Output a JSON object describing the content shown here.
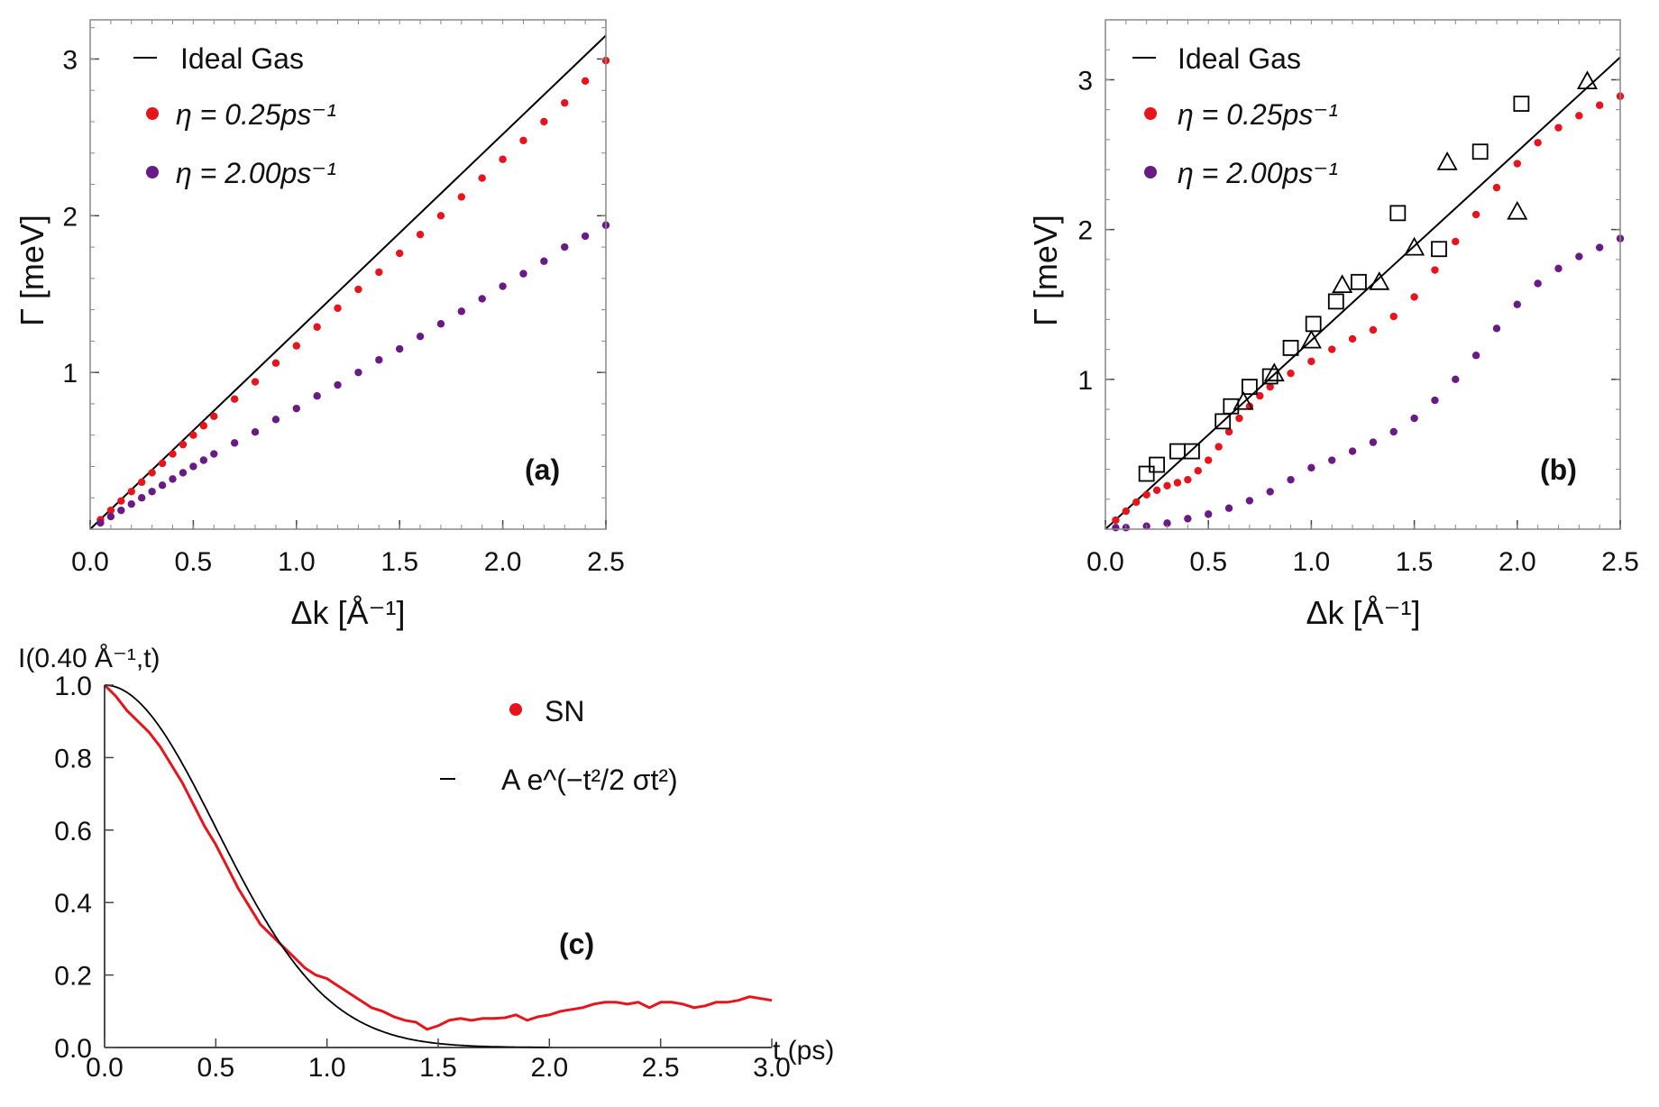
{
  "chart_data": [
    {
      "panel": "a",
      "type": "scatter",
      "panel_label": "(a)",
      "xlabel": "Δk [Å⁻¹]",
      "ylabel": "Γ [meV]",
      "xlim": [
        0,
        2.5
      ],
      "ylim": [
        0,
        3.25
      ],
      "xticks": [
        "0.0",
        "0.5",
        "1.0",
        "1.5",
        "2.0",
        "2.5"
      ],
      "yticks": [
        "1",
        "2",
        "3"
      ],
      "legend": {
        "placement": "top-left",
        "entries": [
          "Ideal Gas",
          "η = 0.25ps⁻¹",
          "η = 2.00ps⁻¹"
        ]
      },
      "series": [
        {
          "name": "Ideal Gas",
          "style": "line",
          "color": "#000000",
          "slope": 1.26
        },
        {
          "name": "η = 0.25ps⁻¹",
          "style": "points",
          "color": "#e8141b",
          "points": [
            [
              0.05,
              0.06
            ],
            [
              0.1,
              0.12
            ],
            [
              0.15,
              0.18
            ],
            [
              0.2,
              0.24
            ],
            [
              0.25,
              0.3
            ],
            [
              0.3,
              0.36
            ],
            [
              0.35,
              0.42
            ],
            [
              0.4,
              0.48
            ],
            [
              0.45,
              0.54
            ],
            [
              0.5,
              0.6
            ],
            [
              0.55,
              0.66
            ],
            [
              0.6,
              0.72
            ],
            [
              0.7,
              0.83
            ],
            [
              0.8,
              0.94
            ],
            [
              0.9,
              1.06
            ],
            [
              1.0,
              1.17
            ],
            [
              1.1,
              1.29
            ],
            [
              1.2,
              1.41
            ],
            [
              1.3,
              1.53
            ],
            [
              1.4,
              1.64
            ],
            [
              1.5,
              1.76
            ],
            [
              1.6,
              1.88
            ],
            [
              1.7,
              2.0
            ],
            [
              1.8,
              2.12
            ],
            [
              1.9,
              2.24
            ],
            [
              2.0,
              2.36
            ],
            [
              2.1,
              2.48
            ],
            [
              2.2,
              2.6
            ],
            [
              2.3,
              2.72
            ],
            [
              2.4,
              2.86
            ],
            [
              2.5,
              2.99
            ]
          ]
        },
        {
          "name": "η = 2.00ps⁻¹",
          "style": "points",
          "color": "#6a1a85",
          "points": [
            [
              0.05,
              0.04
            ],
            [
              0.1,
              0.08
            ],
            [
              0.15,
              0.12
            ],
            [
              0.2,
              0.16
            ],
            [
              0.25,
              0.2
            ],
            [
              0.3,
              0.24
            ],
            [
              0.35,
              0.28
            ],
            [
              0.4,
              0.32
            ],
            [
              0.45,
              0.36
            ],
            [
              0.5,
              0.4
            ],
            [
              0.55,
              0.44
            ],
            [
              0.6,
              0.48
            ],
            [
              0.7,
              0.55
            ],
            [
              0.8,
              0.62
            ],
            [
              0.9,
              0.7
            ],
            [
              1.0,
              0.77
            ],
            [
              1.1,
              0.85
            ],
            [
              1.2,
              0.92
            ],
            [
              1.3,
              1.0
            ],
            [
              1.4,
              1.08
            ],
            [
              1.5,
              1.15
            ],
            [
              1.6,
              1.23
            ],
            [
              1.7,
              1.31
            ],
            [
              1.8,
              1.39
            ],
            [
              1.9,
              1.47
            ],
            [
              2.0,
              1.55
            ],
            [
              2.1,
              1.63
            ],
            [
              2.2,
              1.71
            ],
            [
              2.3,
              1.8
            ],
            [
              2.4,
              1.87
            ],
            [
              2.5,
              1.94
            ]
          ]
        }
      ]
    },
    {
      "panel": "b",
      "type": "scatter",
      "panel_label": "(b)",
      "xlabel": "Δk [Å⁻¹]",
      "ylabel": "Γ [meV]",
      "xlim": [
        0,
        2.5
      ],
      "ylim": [
        0,
        3.4
      ],
      "xticks": [
        "0.0",
        "0.5",
        "1.0",
        "1.5",
        "2.0",
        "2.5"
      ],
      "yticks": [
        "1",
        "2",
        "3"
      ],
      "legend": {
        "placement": "top-left",
        "entries": [
          "Ideal Gas",
          "η = 0.25ps⁻¹",
          "η = 2.00ps⁻¹"
        ]
      },
      "series": [
        {
          "name": "Ideal Gas",
          "style": "line",
          "color": "#000000",
          "slope": 1.26
        },
        {
          "name": "η = 0.25ps⁻¹",
          "style": "points",
          "color": "#e8141b",
          "points": [
            [
              0.05,
              0.06
            ],
            [
              0.1,
              0.12
            ],
            [
              0.15,
              0.18
            ],
            [
              0.2,
              0.23
            ],
            [
              0.25,
              0.26
            ],
            [
              0.3,
              0.29
            ],
            [
              0.35,
              0.31
            ],
            [
              0.4,
              0.33
            ],
            [
              0.45,
              0.39
            ],
            [
              0.5,
              0.46
            ],
            [
              0.55,
              0.55
            ],
            [
              0.6,
              0.65
            ],
            [
              0.65,
              0.74
            ],
            [
              0.7,
              0.82
            ],
            [
              0.75,
              0.89
            ],
            [
              0.8,
              0.95
            ],
            [
              0.9,
              1.04
            ],
            [
              1.0,
              1.12
            ],
            [
              1.1,
              1.2
            ],
            [
              1.2,
              1.27
            ],
            [
              1.3,
              1.33
            ],
            [
              1.4,
              1.42
            ],
            [
              1.5,
              1.55
            ],
            [
              1.6,
              1.73
            ],
            [
              1.7,
              1.92
            ],
            [
              1.8,
              2.1
            ],
            [
              1.9,
              2.28
            ],
            [
              2.0,
              2.44
            ],
            [
              2.1,
              2.58
            ],
            [
              2.2,
              2.68
            ],
            [
              2.3,
              2.76
            ],
            [
              2.4,
              2.83
            ],
            [
              2.5,
              2.89
            ]
          ]
        },
        {
          "name": "η = 2.00ps⁻¹",
          "style": "points",
          "color": "#6a1a85",
          "points": [
            [
              0.05,
              0.01
            ],
            [
              0.1,
              0.01
            ],
            [
              0.2,
              0.02
            ],
            [
              0.3,
              0.04
            ],
            [
              0.4,
              0.07
            ],
            [
              0.5,
              0.1
            ],
            [
              0.6,
              0.14
            ],
            [
              0.7,
              0.19
            ],
            [
              0.8,
              0.25
            ],
            [
              0.9,
              0.33
            ],
            [
              1.0,
              0.41
            ],
            [
              1.1,
              0.46
            ],
            [
              1.2,
              0.52
            ],
            [
              1.3,
              0.58
            ],
            [
              1.4,
              0.65
            ],
            [
              1.5,
              0.74
            ],
            [
              1.6,
              0.86
            ],
            [
              1.7,
              1.0
            ],
            [
              1.8,
              1.16
            ],
            [
              1.9,
              1.34
            ],
            [
              2.0,
              1.5
            ],
            [
              2.1,
              1.64
            ],
            [
              2.2,
              1.74
            ],
            [
              2.3,
              1.82
            ],
            [
              2.4,
              1.88
            ],
            [
              2.5,
              1.94
            ]
          ]
        },
        {
          "name": "exp squares",
          "style": "squares",
          "color": "#000000",
          "points": [
            [
              0.2,
              0.37
            ],
            [
              0.25,
              0.43
            ],
            [
              0.35,
              0.52
            ],
            [
              0.42,
              0.52
            ],
            [
              0.57,
              0.72
            ],
            [
              0.61,
              0.82
            ],
            [
              0.7,
              0.95
            ],
            [
              0.8,
              1.02
            ],
            [
              0.9,
              1.21
            ],
            [
              1.01,
              1.37
            ],
            [
              1.12,
              1.52
            ],
            [
              1.23,
              1.65
            ],
            [
              1.42,
              2.11
            ],
            [
              1.62,
              1.87
            ],
            [
              1.82,
              2.52
            ],
            [
              2.02,
              2.84
            ]
          ]
        },
        {
          "name": "exp triangles",
          "style": "triangles",
          "color": "#000000",
          "points": [
            [
              0.67,
              0.85
            ],
            [
              0.82,
              1.04
            ],
            [
              1.0,
              1.26
            ],
            [
              1.15,
              1.63
            ],
            [
              1.33,
              1.65
            ],
            [
              1.5,
              1.88
            ],
            [
              1.66,
              2.45
            ],
            [
              2.0,
              2.12
            ],
            [
              2.34,
              2.99
            ]
          ]
        }
      ]
    },
    {
      "panel": "c",
      "type": "line",
      "panel_label": "(c)",
      "xlabel": "t (ps)",
      "ylabel": "I(0.40 Å⁻¹,t)",
      "xlim": [
        0,
        3.0
      ],
      "ylim": [
        0,
        1.0
      ],
      "xticks": [
        "0.0",
        "0.5",
        "1.0",
        "1.5",
        "2.0",
        "2.5",
        "3.0"
      ],
      "yticks": [
        "0.0",
        "0.2",
        "0.4",
        "0.6",
        "0.8",
        "1.0"
      ],
      "legend": {
        "placement": "top-right",
        "entries": [
          "SN",
          "A e^(−t²/2 σt²)"
        ]
      },
      "series": [
        {
          "name": "SN",
          "style": "line",
          "color": "#e8141b",
          "points": [
            [
              0,
              1.0
            ],
            [
              0.05,
              0.97
            ],
            [
              0.1,
              0.93
            ],
            [
              0.15,
              0.9
            ],
            [
              0.2,
              0.87
            ],
            [
              0.25,
              0.83
            ],
            [
              0.3,
              0.78
            ],
            [
              0.35,
              0.73
            ],
            [
              0.4,
              0.67
            ],
            [
              0.45,
              0.61
            ],
            [
              0.5,
              0.56
            ],
            [
              0.55,
              0.5
            ],
            [
              0.6,
              0.44
            ],
            [
              0.65,
              0.39
            ],
            [
              0.7,
              0.34
            ],
            [
              0.75,
              0.31
            ],
            [
              0.8,
              0.28
            ],
            [
              0.85,
              0.25
            ],
            [
              0.9,
              0.22
            ],
            [
              0.95,
              0.2
            ],
            [
              1.0,
              0.19
            ],
            [
              1.05,
              0.17
            ],
            [
              1.1,
              0.15
            ],
            [
              1.15,
              0.13
            ],
            [
              1.2,
              0.11
            ],
            [
              1.25,
              0.1
            ],
            [
              1.3,
              0.085
            ],
            [
              1.35,
              0.075
            ],
            [
              1.4,
              0.07
            ],
            [
              1.45,
              0.05
            ],
            [
              1.5,
              0.06
            ],
            [
              1.55,
              0.075
            ],
            [
              1.6,
              0.08
            ],
            [
              1.65,
              0.075
            ],
            [
              1.7,
              0.08
            ],
            [
              1.75,
              0.08
            ],
            [
              1.8,
              0.082
            ],
            [
              1.85,
              0.09
            ],
            [
              1.9,
              0.075
            ],
            [
              1.95,
              0.085
            ],
            [
              2.0,
              0.09
            ],
            [
              2.05,
              0.1
            ],
            [
              2.1,
              0.105
            ],
            [
              2.15,
              0.11
            ],
            [
              2.2,
              0.12
            ],
            [
              2.25,
              0.125
            ],
            [
              2.3,
              0.125
            ],
            [
              2.35,
              0.12
            ],
            [
              2.4,
              0.125
            ],
            [
              2.45,
              0.11
            ],
            [
              2.5,
              0.125
            ],
            [
              2.55,
              0.125
            ],
            [
              2.6,
              0.12
            ],
            [
              2.65,
              0.11
            ],
            [
              2.7,
              0.115
            ],
            [
              2.75,
              0.125
            ],
            [
              2.8,
              0.125
            ],
            [
              2.85,
              0.13
            ],
            [
              2.9,
              0.14
            ],
            [
              2.95,
              0.135
            ],
            [
              3.0,
              0.13
            ]
          ]
        },
        {
          "name": "A e^(−t²/2 σt²)",
          "style": "gaussian",
          "color": "#000000",
          "amplitude": 1.0,
          "sigma": 0.5,
          "x_end": 2.0
        }
      ]
    }
  ]
}
